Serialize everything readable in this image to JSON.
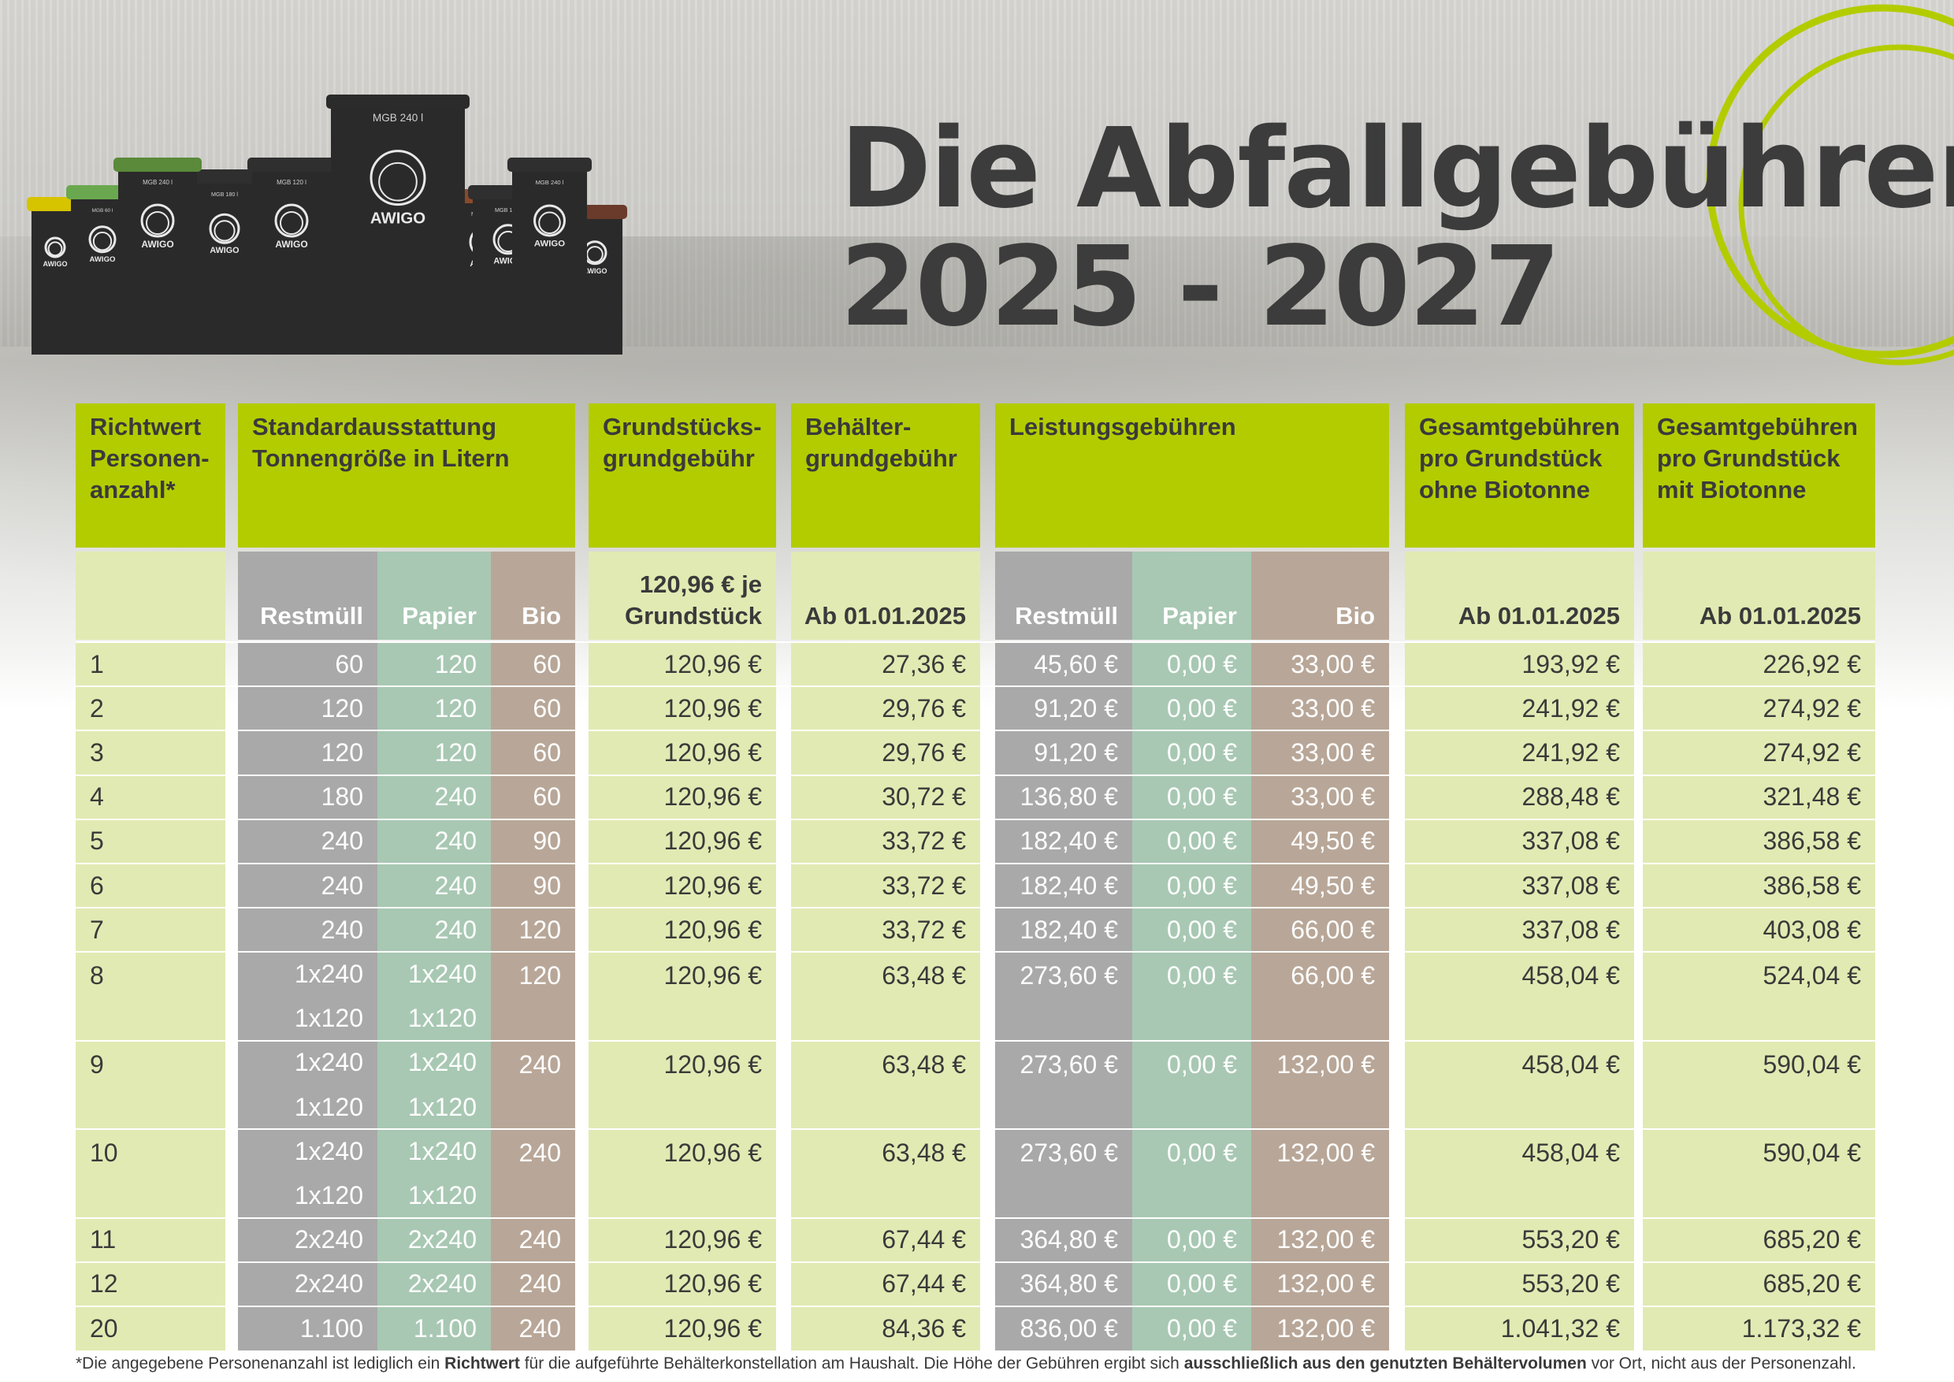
{
  "title": {
    "line1": "Die Abfallgebühren",
    "line2": "2025 - 2027"
  },
  "bins": {
    "labels": [
      "MGB 240 l",
      "MGB 120 l",
      "MGB 180 l",
      "MGB 60 l"
    ],
    "brand": "AWIGO"
  },
  "colors": {
    "green": "#b3cc00",
    "light": "#e2eab3",
    "grey": "#a9a9a9",
    "paper": "#a8c8b3",
    "bio": "#b8a798",
    "text": "#3a3a3a"
  },
  "headers": {
    "persons": "Richtwert Personen-anzahl*",
    "standard": "Standardausstattung Tonnengröße in Litern",
    "grund": "Grundstücks-grundgebühr",
    "behaelter": "Behälter-grundgebühr",
    "leistung": "Leistungsgebühren",
    "ohne": "Gesamtgebühren pro Grundstück ohne Biotonne",
    "mit": "Gesamtgebühren pro Grundstück mit Biotonne"
  },
  "subheaders": {
    "restmuell": "Restmüll",
    "papier": "Papier",
    "bio": "Bio",
    "grund": "120,96 € je Grundstück",
    "behaelter": "Ab 01.01.2025",
    "l_restmuell": "Restmüll",
    "l_papier": "Papier",
    "l_bio": "Bio",
    "ohne": "Ab 01.01.2025",
    "mit": "Ab 01.01.2025"
  },
  "rows": [
    {
      "persons": "1",
      "rest": [
        "60"
      ],
      "papier": [
        "120"
      ],
      "bio": "60",
      "grund": "120,96 €",
      "behaelter": "27,36 €",
      "l_rest": "45,60 €",
      "l_papier": "0,00 €",
      "l_bio": "33,00 €",
      "ohne": "193,92 €",
      "mit": "226,92 €"
    },
    {
      "persons": "2",
      "rest": [
        "120"
      ],
      "papier": [
        "120"
      ],
      "bio": "60",
      "grund": "120,96 €",
      "behaelter": "29,76 €",
      "l_rest": "91,20 €",
      "l_papier": "0,00 €",
      "l_bio": "33,00 €",
      "ohne": "241,92 €",
      "mit": "274,92 €"
    },
    {
      "persons": "3",
      "rest": [
        "120"
      ],
      "papier": [
        "120"
      ],
      "bio": "60",
      "grund": "120,96 €",
      "behaelter": "29,76 €",
      "l_rest": "91,20 €",
      "l_papier": "0,00 €",
      "l_bio": "33,00 €",
      "ohne": "241,92 €",
      "mit": "274,92 €"
    },
    {
      "persons": "4",
      "rest": [
        "180"
      ],
      "papier": [
        "240"
      ],
      "bio": "60",
      "grund": "120,96 €",
      "behaelter": "30,72 €",
      "l_rest": "136,80 €",
      "l_papier": "0,00 €",
      "l_bio": "33,00 €",
      "ohne": "288,48 €",
      "mit": "321,48 €"
    },
    {
      "persons": "5",
      "rest": [
        "240"
      ],
      "papier": [
        "240"
      ],
      "bio": "90",
      "grund": "120,96 €",
      "behaelter": "33,72 €",
      "l_rest": "182,40 €",
      "l_papier": "0,00 €",
      "l_bio": "49,50 €",
      "ohne": "337,08 €",
      "mit": "386,58 €"
    },
    {
      "persons": "6",
      "rest": [
        "240"
      ],
      "papier": [
        "240"
      ],
      "bio": "90",
      "grund": "120,96 €",
      "behaelter": "33,72 €",
      "l_rest": "182,40 €",
      "l_papier": "0,00 €",
      "l_bio": "49,50 €",
      "ohne": "337,08 €",
      "mit": "386,58 €"
    },
    {
      "persons": "7",
      "rest": [
        "240"
      ],
      "papier": [
        "240"
      ],
      "bio": "120",
      "grund": "120,96 €",
      "behaelter": "33,72 €",
      "l_rest": "182,40 €",
      "l_papier": "0,00 €",
      "l_bio": "66,00 €",
      "ohne": "337,08 €",
      "mit": "403,08 €"
    },
    {
      "persons": "8",
      "rest": [
        "1x240",
        "1x120"
      ],
      "papier": [
        "1x240",
        "1x120"
      ],
      "bio": "120",
      "grund": "120,96 €",
      "behaelter": "63,48 €",
      "l_rest": "273,60 €",
      "l_papier": "0,00 €",
      "l_bio": "66,00 €",
      "ohne": "458,04 €",
      "mit": "524,04 €"
    },
    {
      "persons": "9",
      "rest": [
        "1x240",
        "1x120"
      ],
      "papier": [
        "1x240",
        "1x120"
      ],
      "bio": "240",
      "grund": "120,96 €",
      "behaelter": "63,48 €",
      "l_rest": "273,60 €",
      "l_papier": "0,00 €",
      "l_bio": "132,00 €",
      "ohne": "458,04 €",
      "mit": "590,04 €"
    },
    {
      "persons": "10",
      "rest": [
        "1x240",
        "1x120"
      ],
      "papier": [
        "1x240",
        "1x120"
      ],
      "bio": "240",
      "grund": "120,96 €",
      "behaelter": "63,48 €",
      "l_rest": "273,60 €",
      "l_papier": "0,00 €",
      "l_bio": "132,00 €",
      "ohne": "458,04 €",
      "mit": "590,04 €"
    },
    {
      "persons": "11",
      "rest": [
        "2x240"
      ],
      "papier": [
        "2x240"
      ],
      "bio": "240",
      "grund": "120,96 €",
      "behaelter": "67,44 €",
      "l_rest": "364,80 €",
      "l_papier": "0,00 €",
      "l_bio": "132,00 €",
      "ohne": "553,20 €",
      "mit": "685,20 €"
    },
    {
      "persons": "12",
      "rest": [
        "2x240"
      ],
      "papier": [
        "2x240"
      ],
      "bio": "240",
      "grund": "120,96 €",
      "behaelter": "67,44 €",
      "l_rest": "364,80 €",
      "l_papier": "0,00 €",
      "l_bio": "132,00 €",
      "ohne": "553,20 €",
      "mit": "685,20 €"
    },
    {
      "persons": "20",
      "rest": [
        "1.100"
      ],
      "papier": [
        "1.100"
      ],
      "bio": "240",
      "grund": "120,96 €",
      "behaelter": "84,36 €",
      "l_rest": "836,00 €",
      "l_papier": "0,00 €",
      "l_bio": "132,00 €",
      "ohne": "1.041,32 €",
      "mit": "1.173,32 €"
    }
  ],
  "footnote": {
    "p1": "*Die angegebene Personenanzahl ist lediglich ein ",
    "b1": "Richtwert",
    "p2": " für die aufgeführte Behälterkonstellation am Haushalt. Die Höhe der Gebühren ergibt sich ",
    "b2": "ausschließlich aus den genutzten Behältervolumen",
    "p3": " vor Ort, nicht aus der Personenzahl."
  }
}
